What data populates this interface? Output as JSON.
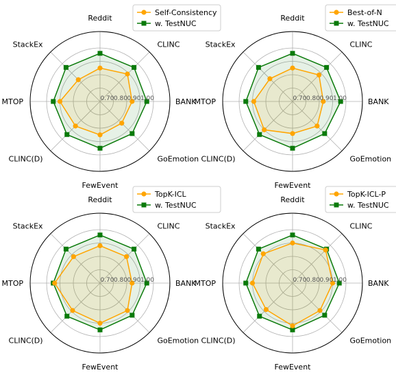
{
  "chart_data": [
    {
      "type": "radar",
      "axes": [
        "BANK",
        "CLINC",
        "Reddit",
        "StackEx",
        "MTOP",
        "CLINC(D)",
        "FewEvent",
        "GoEmotion"
      ],
      "rlim": [
        0.6,
        1.05
      ],
      "rticks": [
        "0.70",
        "0.80",
        "0.90",
        "1.00"
      ],
      "grid": true,
      "legend_placement": "top-right",
      "series": [
        {
          "name": "Self-Consistency",
          "color": "#FFA500",
          "marker": "circle",
          "values": [
            0.84,
            0.89,
            0.85,
            0.83,
            0.9,
            0.86,
            0.85,
            0.83
          ]
        },
        {
          "name": "w. TestNUC",
          "color": "#0A7A0A",
          "marker": "square",
          "values": [
            0.95,
            0.96,
            0.96,
            0.96,
            0.95,
            0.95,
            0.95,
            0.94
          ]
        }
      ]
    },
    {
      "type": "radar",
      "axes": [
        "BANK",
        "CLINC",
        "Reddit",
        "StackEx",
        "MTOP",
        "CLINC(D)",
        "FewEvent",
        "GoEmotion"
      ],
      "rlim": [
        0.6,
        1.05
      ],
      "rticks": [
        "0.70",
        "0.80",
        "0.90",
        "1.00"
      ],
      "grid": true,
      "legend_placement": "top-right",
      "series": [
        {
          "name": "Best-of-N",
          "color": "#FFA500",
          "marker": "circle",
          "values": [
            0.83,
            0.88,
            0.85,
            0.84,
            0.89,
            0.9,
            0.84,
            0.86
          ]
        },
        {
          "name": "w. TestNUC",
          "color": "#0A7A0A",
          "marker": "square",
          "values": [
            0.96,
            0.96,
            0.96,
            0.96,
            0.95,
            0.95,
            0.95,
            0.94
          ]
        }
      ]
    },
    {
      "type": "radar",
      "axes": [
        "BANK",
        "CLINC",
        "Reddit",
        "StackEx",
        "MTOP",
        "CLINC(D)",
        "FewEvent",
        "GoEmotion"
      ],
      "rlim": [
        0.6,
        1.05
      ],
      "rticks": [
        "0.70",
        "0.80",
        "0.90",
        "1.00"
      ],
      "grid": true,
      "legend_placement": "top-right",
      "series": [
        {
          "name": "TopK-ICL",
          "color": "#FFA500",
          "marker": "circle",
          "values": [
            0.84,
            0.88,
            0.88,
            0.88,
            0.94,
            0.89,
            0.9,
            0.89
          ]
        },
        {
          "name": "w. TestNUC",
          "color": "#0A7A0A",
          "marker": "square",
          "values": [
            0.95,
            0.96,
            0.96,
            0.96,
            0.95,
            0.95,
            0.95,
            0.94
          ]
        }
      ]
    },
    {
      "type": "radar",
      "axes": [
        "BANK",
        "CLINC",
        "Reddit",
        "StackEx",
        "MTOP",
        "CLINC(D)",
        "FewEvent",
        "GoEmotion"
      ],
      "rlim": [
        0.6,
        1.05
      ],
      "rticks": [
        "0.70",
        "0.80",
        "0.90",
        "1.00"
      ],
      "grid": true,
      "legend_placement": "top-right",
      "series": [
        {
          "name": "TopK-ICL-P",
          "color": "#FFA500",
          "marker": "circle",
          "values": [
            0.9,
            0.95,
            0.9,
            0.91,
            0.9,
            0.88,
            0.92,
            0.89
          ]
        },
        {
          "name": "w. TestNUC",
          "color": "#0A7A0A",
          "marker": "square",
          "values": [
            0.95,
            0.96,
            0.96,
            0.96,
            0.95,
            0.95,
            0.95,
            0.94
          ]
        }
      ]
    }
  ]
}
